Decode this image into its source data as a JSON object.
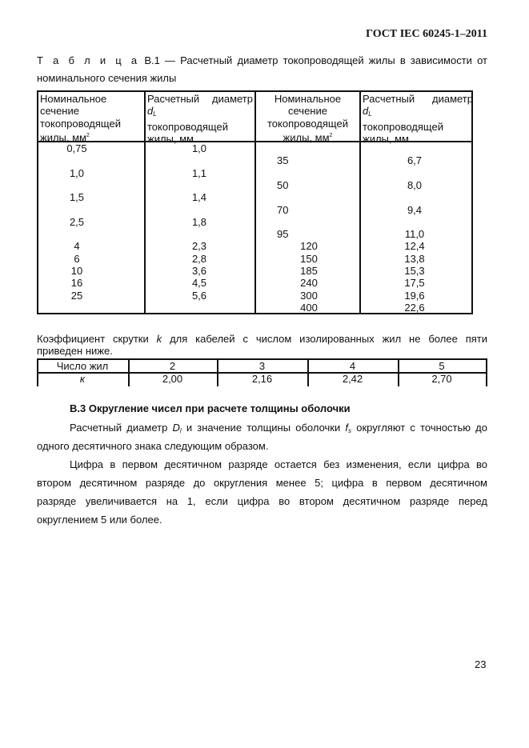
{
  "header": {
    "standard": "ГОСТ IEC 60245-1–2011"
  },
  "caption": {
    "label": "Т а б л и ц а",
    "number": "В.1",
    "line1_rest": "— Расчетный диаметр токопроводящей жилы в зависимости от",
    "line2": "номинального сечения жилы"
  },
  "table1": {
    "headers": [
      [
        "Номинальное",
        "сечение",
        "токопроводящей",
        "жилы, мм",
        "2"
      ],
      [
        "Расчетный диаметр",
        "d",
        "L",
        "токопроводящей",
        "жилы, мм"
      ],
      [
        "Номинальное",
        "сечение",
        "токопроводящей",
        "жилы, мм",
        "2"
      ],
      [
        "Расчетный диаметр",
        "d",
        "L",
        "токопроводящей",
        "жилы, мм"
      ]
    ],
    "left_sections": [
      "0,75",
      "1,0",
      "1,5",
      "2,5",
      "4",
      "6",
      "10",
      "16",
      "25"
    ],
    "left_diameters": [
      "1,0",
      "1,1",
      "1,4",
      "1,8",
      "2,3",
      "2,8",
      "3,6",
      "4,5",
      "5,6"
    ],
    "right_sections": [
      "35",
      "50",
      "70",
      "95",
      "120",
      "150",
      "185",
      "240",
      "300",
      "400"
    ],
    "right_diameters": [
      "6,7",
      "8,0",
      "9,4",
      "11,0",
      "12,4",
      "13,8",
      "15,3",
      "17,5",
      "19,6",
      "22,6"
    ]
  },
  "twist": {
    "text_line1_a": "Коэффициент скрутки",
    "k": "k",
    "text_line1_b": "для кабелей с числом изолированных жил не более пяти",
    "text_line2": "приведен ниже.",
    "row1": [
      "Число жил",
      "2",
      "3",
      "4",
      "5"
    ],
    "row2": [
      "к",
      "2,00",
      "2,16",
      "2,42",
      "2,70"
    ]
  },
  "section": {
    "heading": "В.3 Округление чисел при расчете толщины оболочки",
    "p1_a": "Расчетный диаметр",
    "p1_D": "D",
    "p1_Dsub": "l",
    "p1_b": "и значение толщины оболочки",
    "p1_f": "f",
    "p1_fsub": "s",
    "p1_c": "округляют с точностью до",
    "p1_line2": "одного десятичного знака следующим образом.",
    "p2_lines": [
      "Цифра в первом десятичном разряде остается без изменения, если цифра во",
      "втором десятичном разряде до округления менее 5; цифра в первом десятичном",
      "разряде увеличивается на 1, если цифра во втором десятичном разряде перед",
      "округлением 5 или более."
    ]
  },
  "page_number": "23"
}
